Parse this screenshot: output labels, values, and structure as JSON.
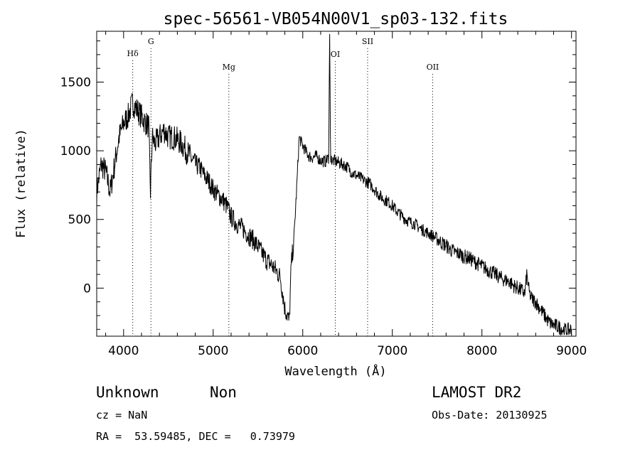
{
  "chart_data": {
    "type": "line",
    "title": "spec-56561-VB054N00V1_sp03-132.fits",
    "xlabel": "Wavelength (Å)",
    "ylabel": "Flux (relative)",
    "xlim": [
      3700,
      9050
    ],
    "ylim": [
      -350,
      1870
    ],
    "xticks": [
      4000,
      5000,
      6000,
      7000,
      8000,
      9000
    ],
    "yticks": [
      0,
      500,
      1000,
      1500
    ],
    "grid": false,
    "lines": [
      {
        "label": "Hδ",
        "x": 4102
      },
      {
        "label": "G",
        "x": 4305
      },
      {
        "label": "Mg",
        "x": 5175
      },
      {
        "label": "OI",
        "x": 6363
      },
      {
        "label": "SII",
        "x": 6724
      },
      {
        "label": "OII",
        "x": 7450
      }
    ],
    "series": [
      {
        "x": [
          3700,
          3750,
          3800,
          3850,
          3900,
          3950,
          4000,
          4050,
          4100,
          4150,
          4200,
          4250,
          4280,
          4300,
          4320,
          4350,
          4400,
          4450,
          4500,
          4550,
          4600,
          4650,
          4700,
          4750,
          4800,
          4850,
          4900,
          4950,
          5000,
          5050,
          5100,
          5150,
          5200,
          5250,
          5300,
          5350,
          5400,
          5450,
          5500,
          5550,
          5600,
          5650,
          5700,
          5750,
          5800,
          5830,
          5850,
          5870,
          5900,
          5930,
          5960,
          5990,
          6030,
          6070,
          6100,
          6150,
          6200,
          6250,
          6290,
          6300,
          6310,
          6330,
          6380,
          6450,
          6500,
          6550,
          6600,
          6650,
          6700,
          6750,
          6800,
          6850,
          6900,
          6950,
          7000,
          7050,
          7100,
          7150,
          7200,
          7250,
          7300,
          7350,
          7400,
          7450,
          7500,
          7550,
          7600,
          7650,
          7700,
          7750,
          7800,
          7850,
          7900,
          7950,
          8000,
          8050,
          8100,
          8150,
          8200,
          8250,
          8300,
          8350,
          8400,
          8450,
          8480,
          8500,
          8530,
          8560,
          8600,
          8650,
          8700,
          8750,
          8800,
          8850,
          8900,
          8950,
          9000
        ],
        "values": [
          700,
          900,
          850,
          700,
          900,
          1100,
          1200,
          1250,
          1350,
          1300,
          1250,
          1200,
          1180,
          700,
          1100,
          1050,
          1100,
          1150,
          1100,
          1100,
          1080,
          1050,
          1000,
          950,
          900,
          880,
          820,
          780,
          720,
          680,
          650,
          600,
          520,
          480,
          450,
          420,
          380,
          350,
          300,
          250,
          200,
          170,
          130,
          80,
          -150,
          -200,
          -250,
          150,
          350,
          700,
          1100,
          1050,
          1000,
          960,
          950,
          960,
          930,
          920,
          950,
          1850,
          950,
          930,
          920,
          900,
          880,
          840,
          820,
          800,
          780,
          760,
          720,
          680,
          650,
          630,
          600,
          560,
          530,
          500,
          480,
          470,
          440,
          420,
          400,
          380,
          360,
          330,
          310,
          280,
          260,
          250,
          230,
          220,
          200,
          180,
          160,
          140,
          120,
          100,
          80,
          60,
          50,
          20,
          0,
          -20,
          -40,
          100,
          -40,
          -80,
          -100,
          -150,
          -200,
          -250,
          -270,
          -280,
          -300,
          -310,
          -300
        ]
      }
    ],
    "footer": {
      "class": "Unknown",
      "subclass": "Non",
      "survey": "LAMOST DR2",
      "cz": "cz = NaN",
      "obs_date": "Obs-Date: 20130925",
      "coords": "RA =  53.59485, DEC =   0.73979"
    }
  }
}
